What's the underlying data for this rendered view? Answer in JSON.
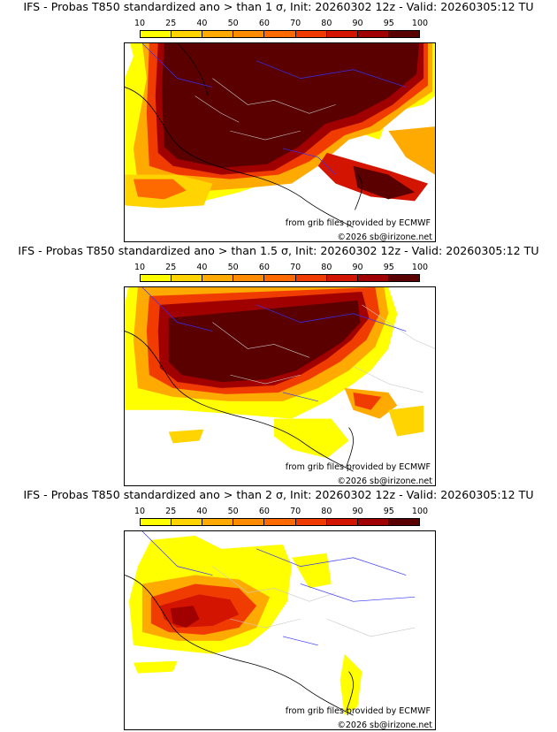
{
  "colorbar": {
    "ticks": [
      "10",
      "25",
      "40",
      "50",
      "60",
      "70",
      "80",
      "90",
      "95",
      "100"
    ],
    "colors": [
      "#ffff00",
      "#ffd400",
      "#ffaa00",
      "#ff8c00",
      "#ff6a00",
      "#f03c00",
      "#d21400",
      "#a00000",
      "#5a0000"
    ]
  },
  "panels": [
    {
      "title": "IFS - Probas T850  standardized ano > than 1 σ, Init: 20260302 12z - Valid: 20260305:12 TU",
      "credit": "from grib files provided by ECMWF",
      "copyright": "©2026 sb@irizone.net"
    },
    {
      "title": "IFS - Probas T850  standardized ano > than 1.5 σ, Init: 20260302 12z - Valid: 20260305:12 TU",
      "credit": "from grib files provided by ECMWF",
      "copyright": "©2026 sb@irizone.net"
    },
    {
      "title": "IFS - Probas T850  standardized ano > than 2 σ, Init: 20260302 12z - Valid: 20260305:12 TU",
      "credit": "from grib files provided by ECMWF",
      "copyright": "©2026 sb@irizone.net"
    }
  ]
}
